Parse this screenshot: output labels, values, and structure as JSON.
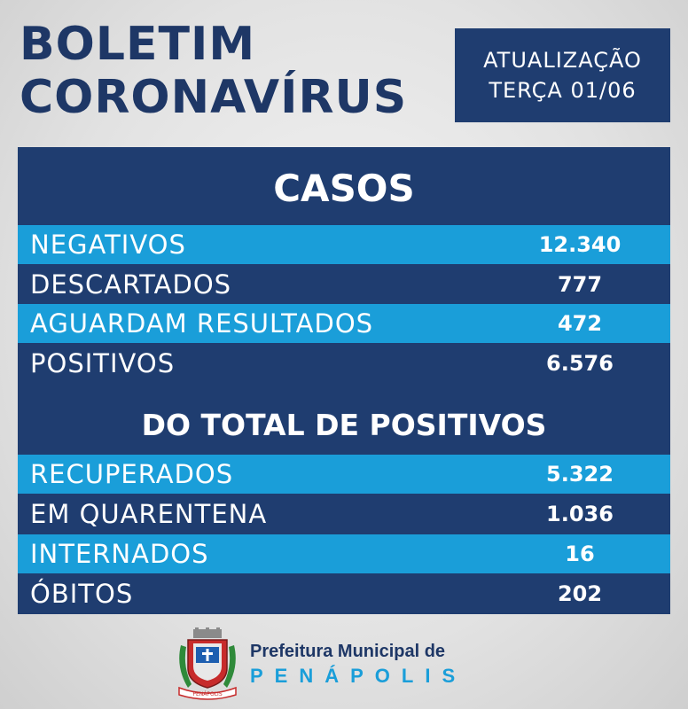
{
  "header": {
    "title_line1": "BOLETIM",
    "title_line2": "CORONAVÍRUS",
    "update_label": "ATUALIZAÇÃO",
    "update_date": "TERÇA 01/06"
  },
  "casos": {
    "title": "CASOS",
    "rows": [
      {
        "label": "NEGATIVOS",
        "value": "12.340"
      },
      {
        "label": "DESCARTADOS",
        "value": "777"
      },
      {
        "label": "AGUARDAM RESULTADOS",
        "value": "472"
      },
      {
        "label": "POSITIVOS",
        "value": "6.576"
      }
    ]
  },
  "positivos": {
    "title": "DO TOTAL DE POSITIVOS",
    "rows": [
      {
        "label": "RECUPERADOS",
        "value": "5.322"
      },
      {
        "label": "EM QUARENTENA",
        "value": "1.036"
      },
      {
        "label": "INTERNADOS",
        "value": "16"
      },
      {
        "label": "ÓBITOS",
        "value": "202"
      }
    ]
  },
  "footer": {
    "line1": "Prefeitura Municipal de",
    "line2": "PENÁPOLIS",
    "seal_text": "PENÁPOLIS"
  },
  "colors": {
    "navy": "#1f3d70",
    "light_blue": "#1a9ed9",
    "title_blue": "#1e3766"
  }
}
